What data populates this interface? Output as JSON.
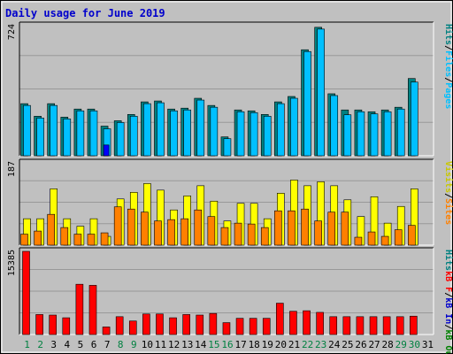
{
  "chart_data": {
    "type": "bar",
    "title": "Daily usage for June 2019",
    "days": [
      "1",
      "2",
      "3",
      "4",
      "5",
      "6",
      "7",
      "8",
      "9",
      "10",
      "11",
      "12",
      "13",
      "14",
      "15",
      "16",
      "17",
      "18",
      "19",
      "20",
      "21",
      "22",
      "23",
      "24",
      "25",
      "26",
      "27",
      "28",
      "29",
      "30",
      "31"
    ],
    "weekend_days": [
      "1",
      "2",
      "8",
      "9",
      "15",
      "16",
      "22",
      "23",
      "29",
      "30"
    ],
    "colors": {
      "title": "#0000cc",
      "frame_bg": "#c0c0c0",
      "plot_bg": "#c0c0c0",
      "grid": "#999999",
      "weekday_label": "#000000",
      "weekend_label": "#008040",
      "hits": "#008080",
      "files": "#00c0ff",
      "pages": "#0000ff",
      "visits": "#ffff00",
      "sites": "#ff8000",
      "kb_in": "#0000cc",
      "kb_out": "#008000",
      "kb_f": "#ff0000"
    },
    "panels": [
      {
        "id": "top",
        "ymax_label": "724",
        "ylim": [
          0,
          724
        ],
        "side_labels": [
          {
            "text": "Hits",
            "color": "#008080"
          },
          {
            "text": "/",
            "color": "#000000"
          },
          {
            "text": "Files",
            "color": "#00c0ff"
          },
          {
            "text": "/",
            "color": "#000000"
          },
          {
            "text": "Pages",
            "color": "#00c0ff"
          }
        ],
        "series": [
          {
            "name": "Hits",
            "color": "#008080",
            "values": [
              290,
              220,
              290,
              215,
              260,
              260,
              165,
              195,
              230,
              300,
              305,
              260,
              265,
              320,
              280,
              105,
              255,
              250,
              230,
              300,
              330,
              590,
              715,
              345,
              255,
              255,
              245,
              255,
              270,
              430,
              0
            ]
          },
          {
            "name": "Files",
            "color": "#00c0ff",
            "values": [
              280,
              210,
              280,
              205,
              250,
              250,
              150,
              185,
              220,
              290,
              295,
              250,
              255,
              310,
              270,
              95,
              245,
              240,
              220,
              290,
              320,
              580,
              705,
              335,
              228,
              245,
              233,
              245,
              260,
              410,
              0
            ]
          },
          {
            "name": "Pages",
            "color": "#0000ff",
            "values": [
              0,
              0,
              0,
              0,
              0,
              0,
              60,
              0,
              0,
              0,
              0,
              0,
              0,
              0,
              0,
              0,
              0,
              0,
              0,
              0,
              0,
              0,
              0,
              0,
              0,
              0,
              0,
              0,
              0,
              0,
              0
            ]
          }
        ]
      },
      {
        "id": "middle",
        "ymax_label": "187",
        "ylim": [
          0,
          187
        ],
        "side_labels": [
          {
            "text": "Visits",
            "color": "#c8c800"
          },
          {
            "text": "/",
            "color": "#000000"
          },
          {
            "text": "Sites",
            "color": "#ff8000"
          }
        ],
        "series": [
          {
            "name": "Visits",
            "color": "#ffff00",
            "values": [
              60,
              60,
              128,
              60,
              43,
              60,
              20,
              105,
              120,
              140,
              125,
              80,
              112,
              135,
              100,
              55,
              95,
              95,
              60,
              118,
              148,
              135,
              144,
              135,
              103,
              65,
              110,
              50,
              88,
              128,
              0
            ]
          },
          {
            "name": "Sites",
            "color": "#ff8000",
            "values": [
              25,
              32,
              70,
              40,
              25,
              25,
              28,
              87,
              82,
              75,
              55,
              58,
              60,
              80,
              65,
              40,
              50,
              48,
              40,
              78,
              78,
              82,
              55,
              75,
              75,
              18,
              30,
              20,
              35,
              45,
              0
            ]
          }
        ]
      },
      {
        "id": "bottom",
        "ymax_label": "15385",
        "ylim": [
          0,
          15385
        ],
        "side_labels": [
          {
            "text": "Hits",
            "color": "#008080"
          },
          {
            "text": "kB F",
            "color": "#ff0000"
          },
          {
            "text": "/",
            "color": "#000000"
          },
          {
            "text": "kB In",
            "color": "#0000cc"
          },
          {
            "text": "/",
            "color": "#000000"
          },
          {
            "text": "kB Out",
            "color": "#008000"
          }
        ],
        "series": [
          {
            "name": "kB F",
            "color": "#ff0000",
            "values": [
              15385,
              3700,
              3600,
              3100,
              9300,
              9100,
              1400,
              3300,
              2500,
              3800,
              3800,
              3100,
              3700,
              3600,
              3900,
              2200,
              3000,
              3000,
              3000,
              5800,
              4300,
              4400,
              4100,
              3300,
              3300,
              3300,
              3300,
              3300,
              3300,
              3400,
              0
            ]
          }
        ]
      }
    ]
  }
}
